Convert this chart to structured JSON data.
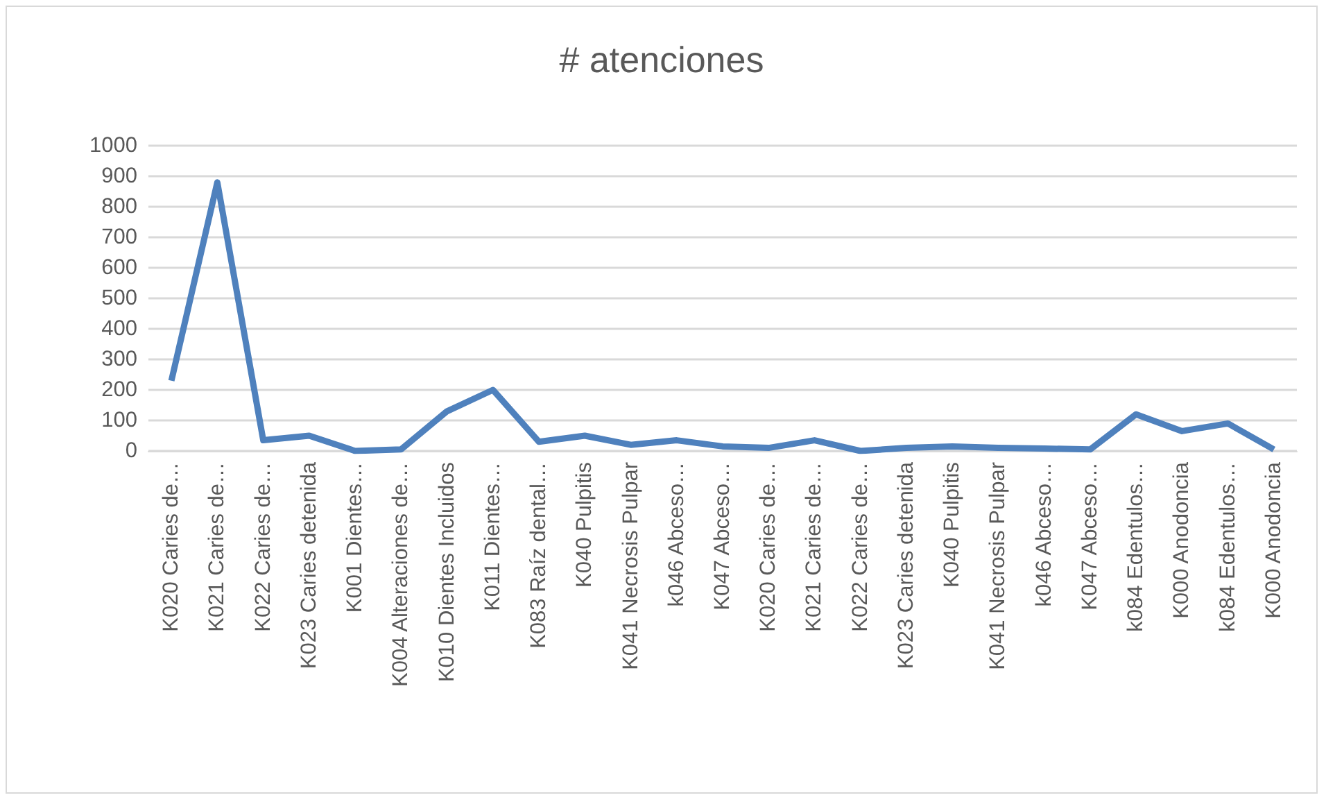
{
  "chart_data": {
    "type": "line",
    "title": "# atenciones",
    "categories": [
      "K020 Caries de…",
      "K021 Caries de…",
      "K022 Caries de…",
      "K023 Caries detenida",
      "K001 Dientes…",
      "K004 Alteraciones de…",
      "K010 Dientes Incluidos",
      "K011 Dientes…",
      "K083 Raíz dental…",
      "K040 Pulpitis",
      "K041 Necrosis Pulpar",
      "k046 Abceso…",
      "K047 Abceso…",
      "K020 Caries de…",
      "K021 Caries de…",
      "K022 Caries de…",
      "K023 Caries detenida",
      "K040 Pulpitis",
      "K041 Necrosis Pulpar",
      "k046 Abceso…",
      "K047 Abceso…",
      "k084 Edentulos…",
      "K000 Anodoncia",
      "k084 Edentulos…",
      "K000 Anodoncia"
    ],
    "series": [
      {
        "color": "#4f81bd",
        "values": [
          230,
          880,
          35,
          50,
          0,
          5,
          130,
          200,
          30,
          50,
          20,
          35,
          15,
          10,
          35,
          0,
          10,
          15,
          10,
          8,
          5,
          120,
          65,
          90,
          5
        ]
      }
    ],
    "ylim": [
      0,
      1000
    ],
    "yticks": [
      0,
      100,
      200,
      300,
      400,
      500,
      600,
      700,
      800,
      900,
      1000
    ],
    "grid": "y",
    "marker": "none",
    "line_style": "solid"
  }
}
